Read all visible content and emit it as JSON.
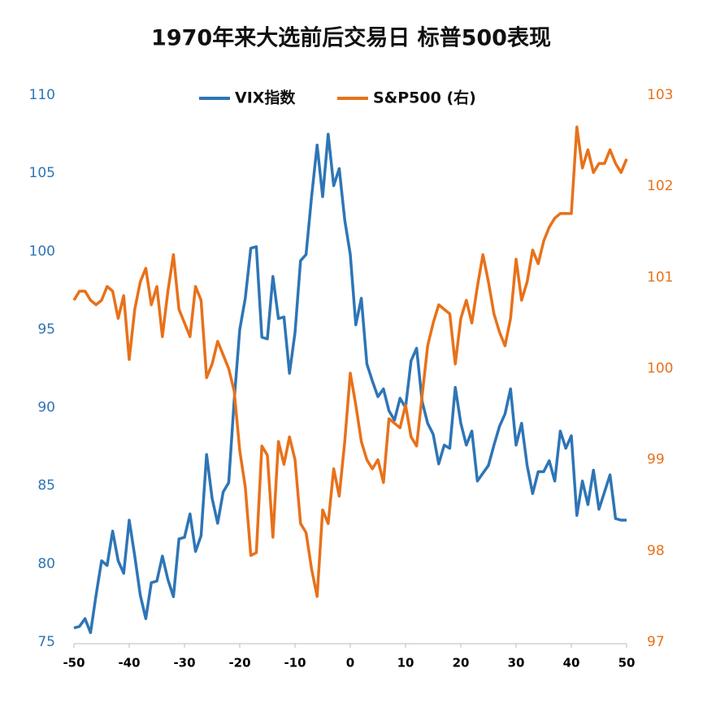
{
  "chart_data": {
    "type": "line",
    "title": "1970年来大选前后交易日 标普500表现",
    "x": [
      -50,
      -49,
      -48,
      -47,
      -46,
      -45,
      -44,
      -43,
      -42,
      -41,
      -40,
      -39,
      -38,
      -37,
      -36,
      -35,
      -34,
      -33,
      -32,
      -31,
      -30,
      -29,
      -28,
      -27,
      -26,
      -25,
      -24,
      -23,
      -22,
      -21,
      -20,
      -19,
      -18,
      -17,
      -16,
      -15,
      -14,
      -13,
      -12,
      -11,
      -10,
      -9,
      -8,
      -7,
      -6,
      -5,
      -4,
      -3,
      -2,
      -1,
      0,
      1,
      2,
      3,
      4,
      5,
      6,
      7,
      8,
      9,
      10,
      11,
      12,
      13,
      14,
      15,
      16,
      17,
      18,
      19,
      20,
      21,
      22,
      23,
      24,
      25,
      26,
      27,
      28,
      29,
      30,
      31,
      32,
      33,
      34,
      35,
      36,
      37,
      38,
      39,
      40,
      41,
      42,
      43,
      44,
      45,
      46,
      47,
      48,
      49,
      50
    ],
    "series": [
      {
        "name": "VIX指数",
        "color": "#2e75b6",
        "axis": "y",
        "values": [
          75.9,
          76.0,
          76.5,
          75.6,
          78,
          80.2,
          79.9,
          82.1,
          80.2,
          79.4,
          82.8,
          80.5,
          78,
          76.5,
          78.8,
          78.9,
          80.5,
          79,
          77.9,
          81.6,
          81.7,
          83.2,
          80.8,
          81.8,
          87,
          84.2,
          82.6,
          84.6,
          85.2,
          90.5,
          95,
          97,
          100.2,
          100.3,
          94.5,
          94.4,
          98.4,
          95.7,
          95.8,
          92.2,
          94.8,
          99.4,
          99.8,
          103.5,
          106.8,
          103.5,
          107.5,
          104.2,
          105.3,
          102,
          99.8,
          95.3,
          97,
          92.8,
          91.7,
          90.7,
          91.2,
          89.8,
          89.2,
          90.6,
          90,
          93,
          93.8,
          90.4,
          89,
          88.3,
          86.4,
          87.6,
          87.4,
          91.3,
          89,
          87.6,
          88.5,
          85.3,
          85.8,
          86.3,
          87.6,
          88.8,
          89.6,
          91.2,
          87.6,
          89,
          86.3,
          84.5,
          85.9,
          85.9,
          86.6,
          85.3,
          88.5,
          87.4,
          88.2,
          83.1,
          85.3,
          83.8,
          86,
          83.5,
          84.6,
          85.7,
          82.9,
          82.8,
          82.8
        ]
      },
      {
        "name": "S&P500 (右)",
        "color": "#e8711a",
        "axis": "y2",
        "values": [
          100.75,
          100.85,
          100.85,
          100.75,
          100.7,
          100.75,
          100.9,
          100.85,
          100.55,
          100.8,
          100.1,
          100.65,
          100.95,
          101.1,
          100.7,
          100.9,
          100.35,
          100.85,
          101.25,
          100.65,
          100.5,
          100.35,
          100.9,
          100.75,
          99.9,
          100.05,
          100.3,
          100.15,
          100,
          99.75,
          99.1,
          98.7,
          97.95,
          97.98,
          99.15,
          99.05,
          98.15,
          99.2,
          98.95,
          99.25,
          99.0,
          98.3,
          98.2,
          97.8,
          97.5,
          98.45,
          98.3,
          98.9,
          98.6,
          99.2,
          99.95,
          99.6,
          99.2,
          99.0,
          98.9,
          99.0,
          98.75,
          99.45,
          99.4,
          99.35,
          99.6,
          99.25,
          99.15,
          99.7,
          100.25,
          100.5,
          100.7,
          100.65,
          100.6,
          100.05,
          100.55,
          100.75,
          100.5,
          100.9,
          101.25,
          100.95,
          100.6,
          100.4,
          100.25,
          100.55,
          101.2,
          100.75,
          100.95,
          101.3,
          101.15,
          101.4,
          101.55,
          101.65,
          101.7,
          101.7,
          101.7,
          102.65,
          102.2,
          102.4,
          102.15,
          102.25,
          102.25,
          102.4,
          102.25,
          102.15,
          102.3
        ]
      }
    ],
    "xlim": [
      -50,
      50
    ],
    "xticks": [
      -50,
      -40,
      -30,
      -20,
      -10,
      0,
      10,
      20,
      30,
      40,
      50
    ],
    "ylim": [
      75,
      110
    ],
    "yticks": [
      75,
      80,
      85,
      90,
      95,
      100,
      105,
      110
    ],
    "y2lim": [
      97,
      103
    ],
    "y2ticks": [
      97,
      98,
      99,
      100,
      101,
      102,
      103
    ],
    "legend": "top",
    "grid": false
  }
}
